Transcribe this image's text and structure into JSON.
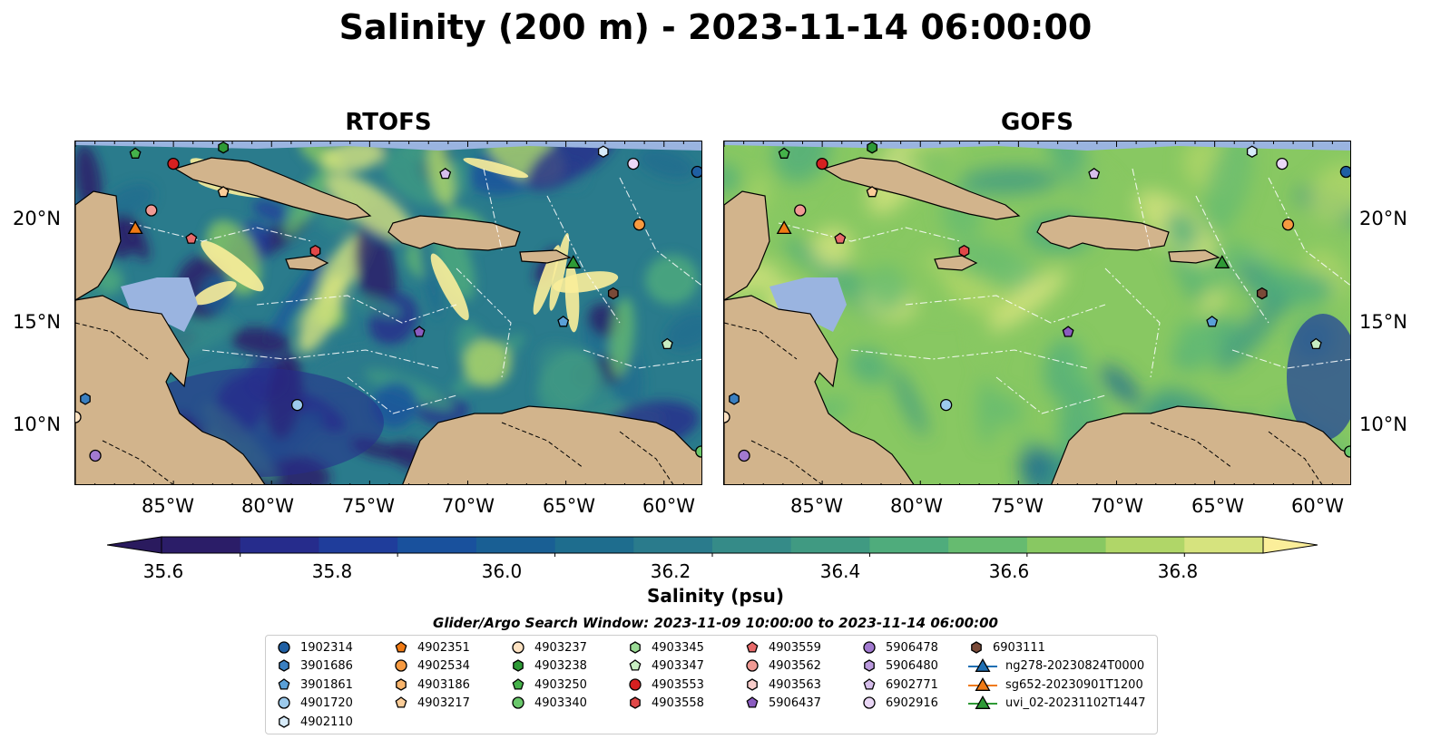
{
  "title": "Salinity (200 m) - 2023-11-14 06:00:00",
  "panels": [
    {
      "title": "RTOFS"
    },
    {
      "title": "GOFS"
    }
  ],
  "lat_labels": [
    "20°N",
    "15°N",
    "10°N"
  ],
  "lon_labels": [
    "85°W",
    "80°W",
    "75°W",
    "70°W",
    "65°W",
    "60°W"
  ],
  "colorbar": {
    "label": "Salinity (psu)",
    "ticks": [
      "35.6",
      "35.8",
      "36.0",
      "36.2",
      "36.4",
      "36.6",
      "36.8"
    ],
    "min": 35.5,
    "max": 36.9,
    "colors": [
      "#2b1d68",
      "#262c8c",
      "#1f3d9b",
      "#19519d",
      "#195f94",
      "#1e6d8e",
      "#2a7b8c",
      "#358b88",
      "#409a82",
      "#4fac7c",
      "#66bb70",
      "#88c862",
      "#b0d668",
      "#d6e37e"
    ],
    "under_color": "#2a1a5e",
    "over_color": "#fbee9a"
  },
  "search_window": "Glider/Argo Search Window: 2023-11-09 10:00:00 to 2023-11-14 06:00:00",
  "legend": [
    {
      "label": "1902314",
      "marker": "circle",
      "color": "#1f5fa3"
    },
    {
      "label": "3901686",
      "marker": "hexagon",
      "color": "#3a7fc0"
    },
    {
      "label": "3901861",
      "marker": "pentagon",
      "color": "#5aa0d8"
    },
    {
      "label": "4901720",
      "marker": "circle",
      "color": "#9ccaec"
    },
    {
      "label": "4902110",
      "marker": "hexagon",
      "color": "#d7ebf9"
    },
    {
      "label": "4902351",
      "marker": "pentagon",
      "color": "#f07a14"
    },
    {
      "label": "4902534",
      "marker": "circle",
      "color": "#f79a40"
    },
    {
      "label": "4903186",
      "marker": "hexagon",
      "color": "#f9b56c"
    },
    {
      "label": "4903217",
      "marker": "pentagon",
      "color": "#fbcd98"
    },
    {
      "label": "4903237",
      "marker": "circle",
      "color": "#fde2c2"
    },
    {
      "label": "4903238",
      "marker": "hexagon",
      "color": "#2e9a36"
    },
    {
      "label": "4903250",
      "marker": "pentagon",
      "color": "#45b24a"
    },
    {
      "label": "4903340",
      "marker": "circle",
      "color": "#6ac86b"
    },
    {
      "label": "4903345",
      "marker": "hexagon",
      "color": "#9adb95"
    },
    {
      "label": "4903347",
      "marker": "pentagon",
      "color": "#c8eec2"
    },
    {
      "label": "4903553",
      "marker": "circle",
      "color": "#d62020"
    },
    {
      "label": "4903558",
      "marker": "hexagon",
      "color": "#e04848"
    },
    {
      "label": "4903559",
      "marker": "pentagon",
      "color": "#e86a6a"
    },
    {
      "label": "4903562",
      "marker": "circle",
      "color": "#f09a94"
    },
    {
      "label": "4903563",
      "marker": "hexagon",
      "color": "#f8cdca"
    },
    {
      "label": "5906437",
      "marker": "pentagon",
      "color": "#8b5cc0"
    },
    {
      "label": "5906478",
      "marker": "circle",
      "color": "#a27ad0"
    },
    {
      "label": "5906480",
      "marker": "hexagon",
      "color": "#bb9ade"
    },
    {
      "label": "6902771",
      "marker": "pentagon",
      "color": "#d6beeb"
    },
    {
      "label": "6902916",
      "marker": "circle",
      "color": "#ead7f6"
    },
    {
      "label": "6903111",
      "marker": "hexagon",
      "color": "#7a4a38"
    },
    {
      "label": "ng278-20230824T0000",
      "marker": "triangle-line",
      "color": "#1f6fb3"
    },
    {
      "label": "sg652-20230901T1200",
      "marker": "triangle-line",
      "color": "#f07a14"
    },
    {
      "label": "uvi_02-20231102T1447",
      "marker": "triangle-line",
      "color": "#2e9a36"
    }
  ],
  "map_extent": {
    "lon": [
      -89.7,
      -58.3
    ],
    "lat": [
      7.0,
      24.0
    ]
  },
  "observations": [
    {
      "id": "4903250",
      "lon": -86.7,
      "lat": 23.4
    },
    {
      "id": "4903553",
      "lon": -84.8,
      "lat": 22.9
    },
    {
      "id": "4903238",
      "lon": -82.3,
      "lat": 23.7
    },
    {
      "id": "4903217",
      "lon": -82.3,
      "lat": 21.5
    },
    {
      "id": "4903562",
      "lon": -85.9,
      "lat": 20.6
    },
    {
      "id": "sg652-20230901T1200",
      "lon": -86.7,
      "lat": 19.7
    },
    {
      "id": "4903559",
      "lon": -83.9,
      "lat": 19.2
    },
    {
      "id": "4903558",
      "lon": -77.7,
      "lat": 18.6
    },
    {
      "id": "6902771",
      "lon": -71.2,
      "lat": 22.4
    },
    {
      "id": "4902110",
      "lon": -63.3,
      "lat": 23.5
    },
    {
      "id": "6902916",
      "lon": -61.8,
      "lat": 22.9
    },
    {
      "id": "1902314",
      "lon": -58.6,
      "lat": 22.5
    },
    {
      "id": "4902534",
      "lon": -61.5,
      "lat": 19.9
    },
    {
      "id": "uvi_02-20231102T1447",
      "lon": -64.8,
      "lat": 18.0
    },
    {
      "id": "6903111",
      "lon": -62.8,
      "lat": 16.5
    },
    {
      "id": "3901861",
      "lon": -65.3,
      "lat": 15.1
    },
    {
      "id": "5906437",
      "lon": -72.5,
      "lat": 14.6
    },
    {
      "id": "4903347",
      "lon": -60.1,
      "lat": 14.0
    },
    {
      "id": "4901720",
      "lon": -78.6,
      "lat": 11.0
    },
    {
      "id": "3901686",
      "lon": -89.2,
      "lat": 11.3
    },
    {
      "id": "5906478",
      "lon": -88.7,
      "lat": 8.5
    },
    {
      "id": "4903340",
      "lon": -58.4,
      "lat": 8.7
    },
    {
      "id": "4903237",
      "lon": -89.7,
      "lat": 10.4
    }
  ]
}
